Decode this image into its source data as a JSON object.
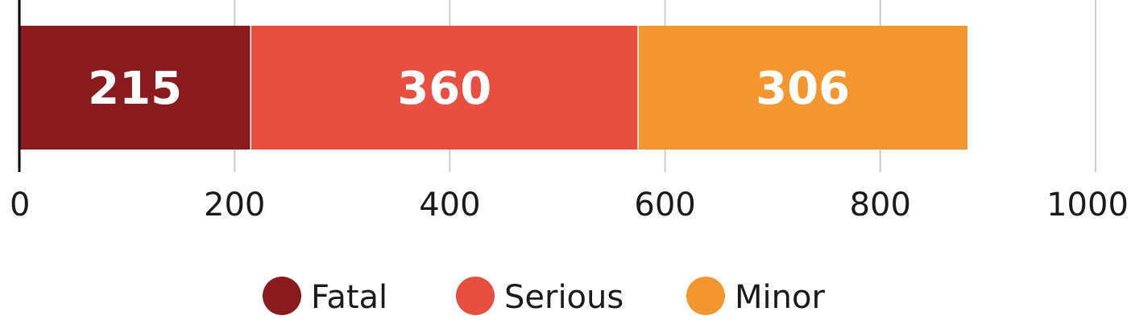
{
  "chart_data": {
    "type": "bar",
    "orientation": "horizontal",
    "stacked": true,
    "categories": [
      ""
    ],
    "series": [
      {
        "name": "Fatal",
        "values": [
          215
        ],
        "color": "#8b1a1e"
      },
      {
        "name": "Serious",
        "values": [
          360
        ],
        "color": "#e84f40"
      },
      {
        "name": "Minor",
        "values": [
          306
        ],
        "color": "#f39630"
      }
    ],
    "xlim": [
      0,
      1000
    ],
    "xticks": [
      0,
      200,
      400,
      600,
      800,
      1000
    ],
    "xtick_labels": [
      "0",
      "200",
      "400",
      "600",
      "800",
      "1000"
    ],
    "grid": true,
    "legend_position": "bottom",
    "title": "",
    "xlabel": "",
    "ylabel": ""
  }
}
